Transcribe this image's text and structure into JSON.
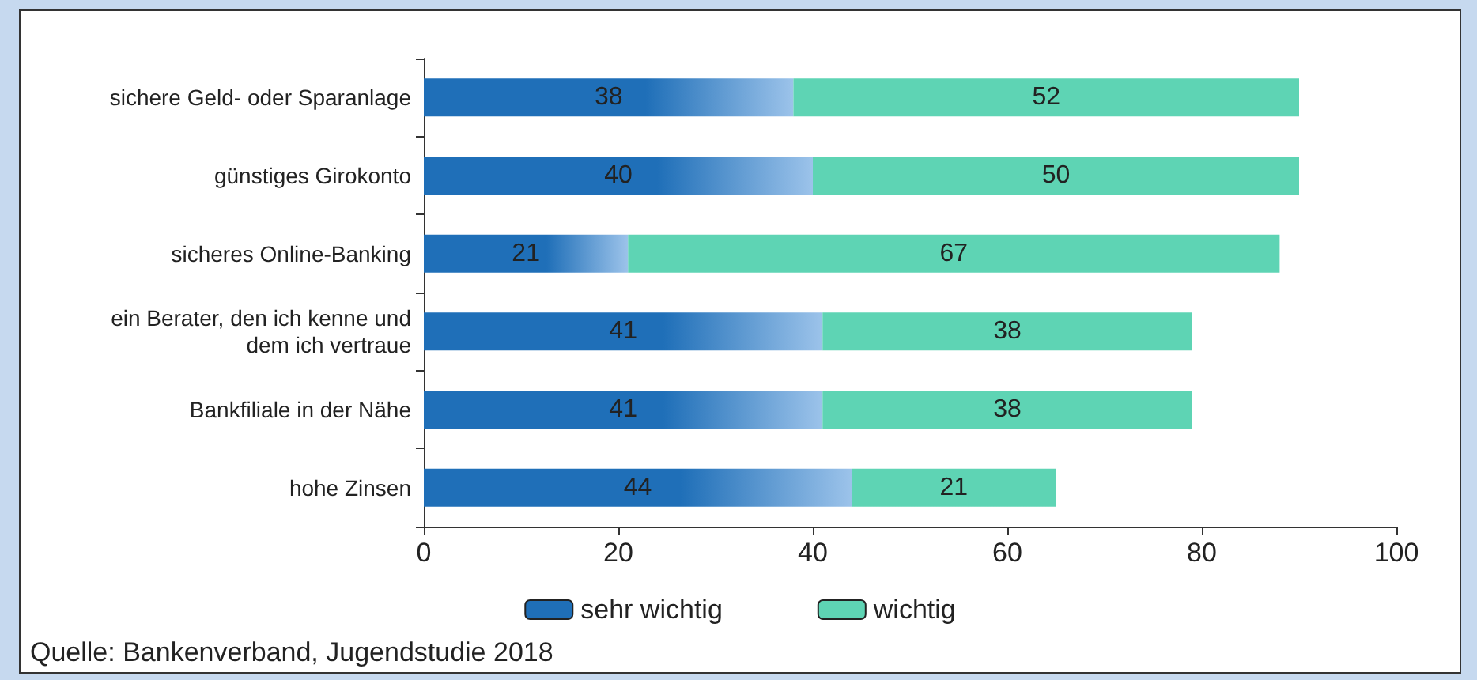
{
  "chart_data": {
    "type": "bar",
    "orientation": "horizontal",
    "stacked": true,
    "data_labels": true,
    "categories": [
      "sichere Geld- oder Sparanlage",
      "günstiges Girokonto",
      "sicheres Online-Banking",
      "ein Berater, den ich kenne und\ndem ich vertraue",
      "Bankfiliale in der Nähe",
      "hohe Zinsen"
    ],
    "series": [
      {
        "name": "sehr wichtig",
        "color": "#1f6fb8",
        "values": [
          38,
          40,
          21,
          41,
          41,
          44
        ]
      },
      {
        "name": "wichtig",
        "color": "#5ed4b4",
        "values": [
          52,
          50,
          67,
          38,
          38,
          21
        ]
      }
    ],
    "xlim": [
      0,
      100
    ],
    "xticks": [
      0,
      20,
      40,
      60,
      80,
      100
    ],
    "grid": false,
    "legend": "bottom",
    "annotations": [
      "Quelle: Bankenverband, Jugendstudie 2018"
    ]
  }
}
